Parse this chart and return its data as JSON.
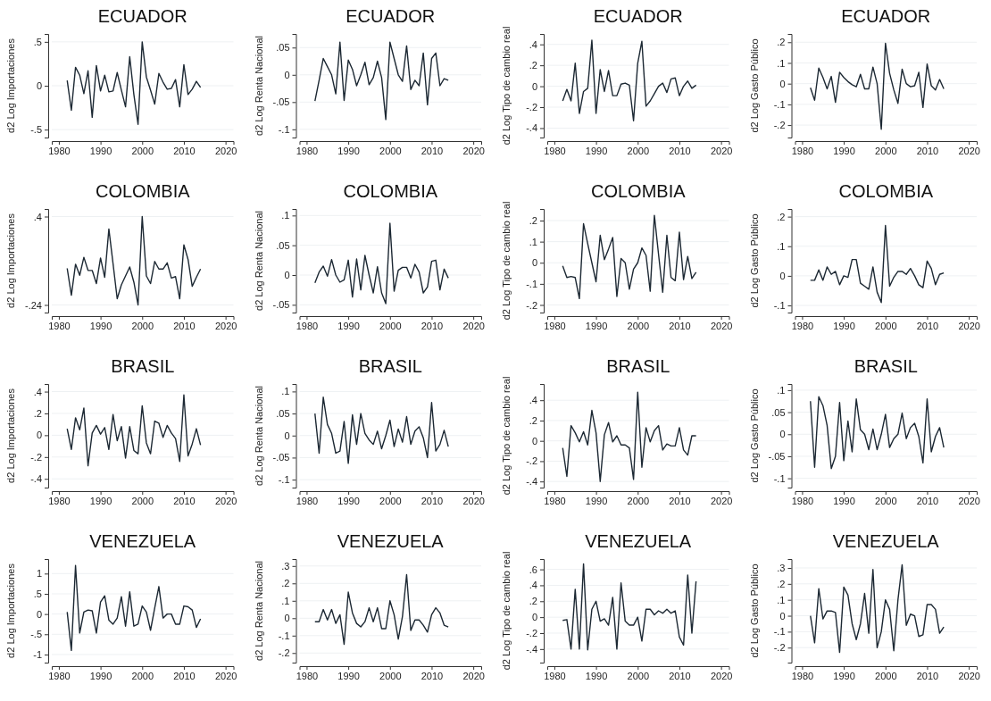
{
  "chart_data": [
    {
      "type": "line",
      "title": "ECUADOR",
      "ylabel": "d2 Log Importaciones",
      "grid": "y",
      "xlim": [
        1978.3,
        2021.9
      ],
      "xticks": [
        1980,
        1990,
        2000,
        2010,
        2020
      ],
      "ylim": [
        -0.59,
        0.59
      ],
      "yticks": [
        {
          "value": -0.5,
          "label": "-.5"
        },
        0,
        {
          "value": 0.5,
          "label": ".5"
        }
      ],
      "color": "#1c2833",
      "x": [
        1982,
        1983,
        1984,
        1985,
        1986,
        1987,
        1988,
        1989,
        1990,
        1991,
        1992,
        1993,
        1994,
        1995,
        1996,
        1997,
        1998,
        1999,
        2000,
        2001,
        2002,
        2003,
        2004,
        2005,
        2006,
        2007,
        2008,
        2009,
        2010,
        2011,
        2012,
        2013,
        2014
      ],
      "values": [
        0.06,
        -0.28,
        0.21,
        0.12,
        -0.09,
        0.17,
        -0.36,
        0.23,
        -0.06,
        0.12,
        -0.07,
        -0.06,
        0.15,
        -0.05,
        -0.24,
        0.33,
        -0.1,
        -0.44,
        0.5,
        0.1,
        -0.05,
        -0.21,
        0.14,
        0.04,
        -0.04,
        -0.03,
        0.07,
        -0.24,
        0.24,
        -0.1,
        -0.04,
        0.05,
        -0.02
      ]
    },
    {
      "type": "line",
      "title": "ECUADOR",
      "ylabel": "d2 Log Renta Nacional",
      "grid": "y",
      "xlim": [
        1978.3,
        2021.9
      ],
      "xticks": [
        1980,
        1990,
        2000,
        2010,
        2020
      ],
      "ylim": [
        -0.115,
        0.075
      ],
      "yticks": [
        {
          "value": -0.1,
          "label": "-.1"
        },
        {
          "value": -0.05,
          "label": "-.05"
        },
        0,
        {
          "value": 0.05,
          "label": ".05"
        }
      ],
      "color": "#1c2833",
      "x": [
        1982,
        1983,
        1984,
        1985,
        1986,
        1987,
        1988,
        1989,
        1990,
        1991,
        1992,
        1993,
        1994,
        1995,
        1996,
        1997,
        1998,
        1999,
        2000,
        2001,
        2002,
        2003,
        2004,
        2005,
        2006,
        2007,
        2008,
        2009,
        2010,
        2011,
        2012,
        2013,
        2014
      ],
      "values": [
        -0.048,
        -0.01,
        0.03,
        0.015,
        0,
        -0.035,
        0.06,
        -0.047,
        0.027,
        0.01,
        -0.02,
        0,
        0.023,
        -0.018,
        -0.005,
        0.025,
        -0.005,
        -0.082,
        0.06,
        0.03,
        0,
        -0.012,
        0.053,
        -0.027,
        -0.01,
        -0.02,
        0.04,
        -0.055,
        0.03,
        0.04,
        -0.02,
        -0.007,
        -0.01
      ]
    },
    {
      "type": "line",
      "title": "ECUADOR",
      "ylabel": "d2 Log Tipo de cambio real",
      "grid": "y",
      "xlim": [
        1978.3,
        2021.9
      ],
      "xticks": [
        1980,
        1990,
        2000,
        2010,
        2020
      ],
      "ylim": [
        -0.49,
        0.5
      ],
      "yticks": [
        {
          "value": -0.4,
          "label": "-.4"
        },
        {
          "value": -0.2,
          "label": "-.2"
        },
        0,
        {
          "value": 0.2,
          "label": ".2"
        },
        {
          "value": 0.4,
          "label": ".4"
        }
      ],
      "color": "#1c2833",
      "x": [
        1982,
        1983,
        1984,
        1985,
        1986,
        1987,
        1988,
        1989,
        1990,
        1991,
        1992,
        1993,
        1994,
        1995,
        1996,
        1997,
        1998,
        1999,
        2000,
        2001,
        2002,
        2003,
        2004,
        2005,
        2006,
        2007,
        2008,
        2009,
        2010,
        2011,
        2012,
        2013,
        2014
      ],
      "values": [
        -0.14,
        -0.03,
        -0.14,
        0.22,
        -0.26,
        -0.05,
        -0.02,
        0.44,
        -0.26,
        0.16,
        -0.05,
        0.15,
        -0.09,
        -0.09,
        0.02,
        0.03,
        0.01,
        -0.33,
        0.22,
        0.43,
        -0.19,
        -0.14,
        -0.07,
        0,
        0.03,
        -0.06,
        0.07,
        0.08,
        -0.09,
        0,
        0.05,
        -0.02,
        0.01
      ]
    },
    {
      "type": "line",
      "title": "ECUADOR",
      "ylabel": "d2 Log Gasto Público",
      "grid": "y",
      "xlim": [
        1978.3,
        2021.9
      ],
      "xticks": [
        1980,
        1990,
        2000,
        2010,
        2020
      ],
      "ylim": [
        -0.26,
        0.24
      ],
      "yticks": [
        {
          "value": -0.2,
          "label": "-.2"
        },
        {
          "value": -0.1,
          "label": "-.1"
        },
        0,
        {
          "value": 0.1,
          "label": ".1"
        },
        {
          "value": 0.2,
          "label": ".2"
        }
      ],
      "color": "#1c2833",
      "x": [
        1982,
        1983,
        1984,
        1985,
        1986,
        1987,
        1988,
        1989,
        1990,
        1991,
        1992,
        1993,
        1994,
        1995,
        1996,
        1997,
        1998,
        1999,
        2000,
        2001,
        2002,
        2003,
        2004,
        2005,
        2006,
        2007,
        2008,
        2009,
        2010,
        2011,
        2012,
        2013,
        2014
      ],
      "values": [
        -0.02,
        -0.08,
        0.075,
        0.03,
        -0.025,
        0.035,
        -0.09,
        0.055,
        0.03,
        0.01,
        -0.005,
        -0.015,
        0.045,
        -0.025,
        -0.025,
        0.08,
        0,
        -0.22,
        0.195,
        0.05,
        -0.03,
        -0.095,
        0.07,
        0,
        -0.015,
        -0.01,
        0.055,
        -0.115,
        0.095,
        -0.01,
        -0.03,
        0.02,
        -0.025
      ]
    },
    {
      "type": "line",
      "title": "COLOMBIA",
      "ylabel": "d2 Log Importaciones",
      "grid": "y",
      "xlim": [
        1978.3,
        2021.9
      ],
      "xticks": [
        1980,
        1990,
        2000,
        2010,
        2020
      ],
      "ylim": [
        -0.295,
        0.455
      ],
      "yticks": [
        {
          "value": -0.24,
          "label": "-.24"
        },
        {
          "value": 0.4,
          "label": ".4"
        }
      ],
      "color": "#1c2833",
      "x": [
        1982,
        1983,
        1984,
        1985,
        1986,
        1987,
        1988,
        1989,
        1990,
        1991,
        1992,
        1993,
        1994,
        1995,
        1996,
        1997,
        1998,
        1999,
        2000,
        2001,
        2002,
        2003,
        2004,
        2005,
        2006,
        2007,
        2008,
        2009,
        2010,
        2011,
        2012,
        2013,
        2014
      ],
      "values": [
        0.025,
        -0.17,
        0.055,
        -0.025,
        0.105,
        0.01,
        0.01,
        -0.085,
        0.1,
        -0.04,
        0.31,
        0.06,
        -0.195,
        -0.095,
        -0.03,
        0.035,
        -0.075,
        -0.24,
        0.4,
        -0.03,
        -0.085,
        0.075,
        0.02,
        0.02,
        0.065,
        -0.045,
        -0.035,
        -0.195,
        0.195,
        0.09,
        -0.105,
        -0.04,
        0.02
      ]
    },
    {
      "type": "line",
      "title": "COLOMBIA",
      "ylabel": "d2 Log Renta Nacional",
      "grid": "y",
      "xlim": [
        1978.3,
        2021.9
      ],
      "xticks": [
        1980,
        1990,
        2000,
        2010,
        2020
      ],
      "ylim": [
        -0.063,
        0.111
      ],
      "yticks": [
        {
          "value": -0.05,
          "label": "-.05"
        },
        0,
        {
          "value": 0.05,
          "label": ".05"
        },
        {
          "value": 0.1,
          "label": ".1"
        }
      ],
      "color": "#1c2833",
      "x": [
        1982,
        1983,
        1984,
        1985,
        1986,
        1987,
        1988,
        1989,
        1990,
        1991,
        1992,
        1993,
        1994,
        1995,
        1996,
        1997,
        1998,
        1999,
        2000,
        2001,
        2002,
        2003,
        2004,
        2005,
        2006,
        2007,
        2008,
        2009,
        2010,
        2011,
        2012,
        2013,
        2014
      ],
      "values": [
        -0.013,
        0.005,
        0.015,
        -0.002,
        0.026,
        0,
        -0.012,
        -0.008,
        0.025,
        -0.037,
        0.027,
        -0.025,
        0.033,
        0,
        -0.03,
        0.014,
        -0.03,
        -0.048,
        0.087,
        -0.027,
        0.008,
        0.013,
        0.013,
        -0.005,
        0.018,
        0.005,
        -0.03,
        -0.02,
        0.023,
        0.025,
        -0.025,
        0.01,
        -0.005
      ]
    },
    {
      "type": "line",
      "title": "COLOMBIA",
      "ylabel": "d2 Log Tipo de cambio real",
      "grid": "y",
      "xlim": [
        1978.3,
        2021.9
      ],
      "xticks": [
        1980,
        1990,
        2000,
        2010,
        2020
      ],
      "ylim": [
        -0.236,
        0.255
      ],
      "yticks": [
        {
          "value": -0.2,
          "label": "-.2"
        },
        {
          "value": -0.1,
          "label": "-.1"
        },
        0,
        {
          "value": 0.1,
          "label": ".1"
        },
        {
          "value": 0.2,
          "label": ".2"
        }
      ],
      "color": "#1c2833",
      "x": [
        1982,
        1983,
        1984,
        1985,
        1986,
        1987,
        1988,
        1989,
        1990,
        1991,
        1992,
        1993,
        1994,
        1995,
        1996,
        1997,
        1998,
        1999,
        2000,
        2001,
        2002,
        2003,
        2004,
        2005,
        2006,
        2007,
        2008,
        2009,
        2010,
        2011,
        2012,
        2013,
        2014
      ],
      "values": [
        -0.015,
        -0.07,
        -0.065,
        -0.07,
        -0.17,
        0.185,
        0.09,
        0,
        -0.09,
        0.13,
        0.015,
        0.065,
        0.12,
        -0.16,
        0.02,
        0,
        -0.125,
        -0.03,
        0,
        0.07,
        0.035,
        -0.135,
        0.225,
        0.04,
        -0.14,
        0.13,
        -0.07,
        -0.085,
        0.145,
        -0.08,
        0.03,
        -0.075,
        -0.045
      ]
    },
    {
      "type": "line",
      "title": "COLOMBIA",
      "ylabel": "d2 Log Gasto Público",
      "grid": "y",
      "xlim": [
        1978.3,
        2021.9
      ],
      "xticks": [
        1980,
        1990,
        2000,
        2010,
        2020
      ],
      "ylim": [
        -0.124,
        0.226
      ],
      "yticks": [
        {
          "value": -0.1,
          "label": "-.1"
        },
        0,
        {
          "value": 0.1,
          "label": ".1"
        },
        {
          "value": 0.2,
          "label": ".2"
        }
      ],
      "color": "#1c2833",
      "x": [
        1982,
        1983,
        1984,
        1985,
        1986,
        1987,
        1988,
        1989,
        1990,
        1991,
        1992,
        1993,
        1994,
        1995,
        1996,
        1997,
        1998,
        1999,
        2000,
        2001,
        2002,
        2003,
        2004,
        2005,
        2006,
        2007,
        2008,
        2009,
        2010,
        2011,
        2012,
        2013,
        2014
      ],
      "values": [
        -0.015,
        -0.015,
        0.02,
        -0.015,
        0.03,
        0.005,
        0.015,
        -0.03,
        0,
        -0.005,
        0.055,
        0.055,
        -0.025,
        -0.035,
        -0.045,
        0.03,
        -0.055,
        -0.09,
        0.17,
        -0.035,
        -0.005,
        0.015,
        0.015,
        0.005,
        0.025,
        0,
        -0.03,
        -0.04,
        0.05,
        0.025,
        -0.03,
        0.005,
        0.01
      ]
    },
    {
      "type": "line",
      "title": "BRASIL",
      "ylabel": "d2 Log Importaciones",
      "grid": "y",
      "xlim": [
        1978.3,
        2021.9
      ],
      "xticks": [
        1980,
        1990,
        2000,
        2010,
        2020
      ],
      "ylim": [
        -0.48,
        0.47
      ],
      "yticks": [
        {
          "value": -0.4,
          "label": "-.4"
        },
        {
          "value": -0.2,
          "label": "-.2"
        },
        0,
        {
          "value": 0.2,
          "label": ".2"
        },
        {
          "value": 0.4,
          "label": ".4"
        }
      ],
      "color": "#1c2833",
      "x": [
        1982,
        1983,
        1984,
        1985,
        1986,
        1987,
        1988,
        1989,
        1990,
        1991,
        1992,
        1993,
        1994,
        1995,
        1996,
        1997,
        1998,
        1999,
        2000,
        2001,
        2002,
        2003,
        2004,
        2005,
        2006,
        2007,
        2008,
        2009,
        2010,
        2011,
        2012,
        2013,
        2014
      ],
      "values": [
        0.06,
        -0.13,
        0.16,
        0.05,
        0.25,
        -0.28,
        0.02,
        0.09,
        0.01,
        0.07,
        -0.13,
        0.19,
        -0.05,
        0.08,
        -0.21,
        0.08,
        -0.14,
        -0.17,
        0.27,
        -0.07,
        -0.17,
        0.13,
        0.11,
        -0.02,
        0.09,
        0.02,
        -0.03,
        -0.24,
        0.37,
        -0.19,
        -0.08,
        0.06,
        -0.09
      ]
    },
    {
      "type": "line",
      "title": "BRASIL",
      "ylabel": "d2 Log Renta Nacional",
      "grid": "y",
      "xlim": [
        1978.3,
        2021.9
      ],
      "xticks": [
        1980,
        1990,
        2000,
        2010,
        2020
      ],
      "ylim": [
        -0.118,
        0.117
      ],
      "yticks": [
        {
          "value": -0.1,
          "label": "-.1"
        },
        {
          "value": -0.05,
          "label": "-.05"
        },
        0,
        {
          "value": 0.05,
          "label": ".05"
        },
        {
          "value": 0.1,
          "label": ".1"
        }
      ],
      "color": "#1c2833",
      "x": [
        1982,
        1983,
        1984,
        1985,
        1986,
        1987,
        1988,
        1989,
        1990,
        1991,
        1992,
        1993,
        1994,
        1995,
        1996,
        1997,
        1998,
        1999,
        2000,
        2001,
        2002,
        2003,
        2004,
        2005,
        2006,
        2007,
        2008,
        2009,
        2010,
        2011,
        2012,
        2013,
        2014
      ],
      "values": [
        0.05,
        -0.04,
        0.087,
        0.025,
        0.005,
        -0.04,
        -0.035,
        0.032,
        -0.063,
        0.047,
        -0.02,
        0.05,
        0.005,
        -0.01,
        -0.02,
        0.01,
        -0.03,
        0,
        0.035,
        -0.025,
        0.015,
        -0.015,
        0.043,
        -0.02,
        0.01,
        0.02,
        -0.005,
        -0.05,
        0.075,
        -0.035,
        -0.02,
        0.012,
        -0.025
      ]
    },
    {
      "type": "line",
      "title": "BRASIL",
      "ylabel": "d2 Log Tipo de cambio real",
      "grid": "y",
      "xlim": [
        1978.3,
        2021.9
      ],
      "xticks": [
        1980,
        1990,
        2000,
        2010,
        2020
      ],
      "ylim": [
        -0.46,
        0.56
      ],
      "yticks": [
        {
          "value": -0.4,
          "label": "-.4"
        },
        {
          "value": -0.2,
          "label": "-.2"
        },
        0,
        {
          "value": 0.2,
          "label": ".2"
        },
        {
          "value": 0.4,
          "label": ".4"
        }
      ],
      "color": "#1c2833",
      "x": [
        1982,
        1983,
        1984,
        1985,
        1986,
        1987,
        1988,
        1989,
        1990,
        1991,
        1992,
        1993,
        1994,
        1995,
        1996,
        1997,
        1998,
        1999,
        2000,
        2001,
        2002,
        2003,
        2004,
        2005,
        2006,
        2007,
        2008,
        2009,
        2010,
        2011,
        2012,
        2013,
        2014
      ],
      "values": [
        -0.07,
        -0.35,
        0.15,
        0.08,
        -0.01,
        0.09,
        -0.04,
        0.3,
        0.08,
        -0.4,
        0.06,
        0.18,
        -0.01,
        0.05,
        -0.04,
        -0.04,
        -0.07,
        -0.38,
        0.48,
        -0.26,
        0.13,
        -0.01,
        0.1,
        0.15,
        -0.09,
        -0.03,
        -0.05,
        -0.05,
        0.13,
        -0.09,
        -0.14,
        0.05,
        0.05
      ]
    },
    {
      "type": "line",
      "title": "BRASIL",
      "ylabel": "d2 Log Gasto Público",
      "grid": "y",
      "xlim": [
        1978.3,
        2021.9
      ],
      "xticks": [
        1980,
        1990,
        2000,
        2010,
        2020
      ],
      "ylim": [
        -0.121,
        0.114
      ],
      "yticks": [
        {
          "value": -0.1,
          "label": "-.1"
        },
        {
          "value": -0.05,
          "label": "-.05"
        },
        0,
        {
          "value": 0.05,
          "label": ".05"
        },
        {
          "value": 0.1,
          "label": ".1"
        }
      ],
      "color": "#1c2833",
      "x": [
        1982,
        1983,
        1984,
        1985,
        1986,
        1987,
        1988,
        1989,
        1990,
        1991,
        1992,
        1993,
        1994,
        1995,
        1996,
        1997,
        1998,
        1999,
        2000,
        2001,
        2002,
        2003,
        2004,
        2005,
        2006,
        2007,
        2008,
        2009,
        2010,
        2011,
        2012,
        2013,
        2014
      ],
      "values": [
        0.075,
        -0.075,
        0.085,
        0.065,
        0.02,
        -0.078,
        -0.05,
        0.072,
        -0.06,
        0.03,
        -0.04,
        0.08,
        0.01,
        0,
        -0.035,
        0.012,
        -0.035,
        0,
        0.045,
        -0.03,
        -0.01,
        0,
        0.048,
        -0.01,
        0.015,
        0.025,
        -0.005,
        -0.065,
        0.08,
        -0.04,
        -0.005,
        0.015,
        -0.03
      ]
    },
    {
      "type": "line",
      "title": "VENEZUELA",
      "ylabel": "d2 Log Importaciones",
      "grid": "y",
      "xlim": [
        1978.3,
        2021.9
      ],
      "xticks": [
        1980,
        1990,
        2000,
        2010,
        2020
      ],
      "ylim": [
        -1.2,
        1.36
      ],
      "yticks": [
        -1,
        {
          "value": -0.5,
          "label": "-.5"
        },
        0,
        {
          "value": 0.5,
          "label": ".5"
        },
        1
      ],
      "color": "#1c2833",
      "x": [
        1982,
        1983,
        1984,
        1985,
        1986,
        1987,
        1988,
        1989,
        1990,
        1991,
        1992,
        1993,
        1994,
        1995,
        1996,
        1997,
        1998,
        1999,
        2000,
        2001,
        2002,
        2003,
        2004,
        2005,
        2006,
        2007,
        2008,
        2009,
        2010,
        2011,
        2012,
        2013,
        2014
      ],
      "values": [
        0.05,
        -0.9,
        1.2,
        -0.47,
        0.05,
        0.1,
        0.08,
        -0.47,
        0.3,
        0.45,
        -0.15,
        -0.25,
        -0.1,
        0.43,
        -0.3,
        0.55,
        -0.3,
        -0.25,
        0.2,
        0.05,
        -0.4,
        0.15,
        0.68,
        -0.1,
        0,
        0,
        -0.25,
        -0.25,
        0.2,
        0.18,
        0.1,
        -0.33,
        -0.12
      ]
    },
    {
      "type": "line",
      "title": "VENEZUELA",
      "ylabel": "d2 Log Renta Nacional",
      "grid": "y",
      "xlim": [
        1978.3,
        2021.9
      ],
      "xticks": [
        1980,
        1990,
        2000,
        2010,
        2020
      ],
      "ylim": [
        -0.255,
        0.34
      ],
      "yticks": [
        {
          "value": -0.2,
          "label": "-.2"
        },
        {
          "value": -0.1,
          "label": "-.1"
        },
        0,
        {
          "value": 0.1,
          "label": ".1"
        },
        {
          "value": 0.2,
          "label": ".2"
        },
        {
          "value": 0.3,
          "label": ".3"
        }
      ],
      "color": "#1c2833",
      "x": [
        1982,
        1983,
        1984,
        1985,
        1986,
        1987,
        1988,
        1989,
        1990,
        1991,
        1992,
        1993,
        1994,
        1995,
        1996,
        1997,
        1998,
        1999,
        2000,
        2001,
        2002,
        2003,
        2004,
        2005,
        2006,
        2007,
        2008,
        2009,
        2010,
        2011,
        2012,
        2013,
        2014
      ],
      "values": [
        -0.02,
        -0.02,
        0.05,
        -0.01,
        0.05,
        -0.03,
        0.02,
        -0.15,
        0.15,
        0.03,
        -0.03,
        -0.05,
        -0.02,
        0.06,
        -0.02,
        0.06,
        -0.06,
        -0.06,
        0.1,
        0.02,
        -0.12,
        0.01,
        0.25,
        -0.07,
        -0.01,
        -0.01,
        -0.04,
        -0.08,
        0.02,
        0.06,
        0.03,
        -0.04,
        -0.05
      ]
    },
    {
      "type": "line",
      "title": "VENEZUELA",
      "ylabel": "d2 Log Tipo de cambio real",
      "grid": "y",
      "xlim": [
        1978.3,
        2021.9
      ],
      "xticks": [
        1980,
        1990,
        2000,
        2010,
        2020
      ],
      "ylim": [
        -0.57,
        0.73
      ],
      "yticks": [
        {
          "value": -0.4,
          "label": "-.4"
        },
        {
          "value": -0.2,
          "label": "-.2"
        },
        0,
        {
          "value": 0.2,
          "label": ".2"
        },
        {
          "value": 0.4,
          "label": ".4"
        },
        {
          "value": 0.6,
          "label": ".6"
        }
      ],
      "color": "#1c2833",
      "x": [
        1982,
        1983,
        1984,
        1985,
        1986,
        1987,
        1988,
        1989,
        1990,
        1991,
        1992,
        1993,
        1994,
        1995,
        1996,
        1997,
        1998,
        1999,
        2000,
        2001,
        2002,
        2003,
        2004,
        2005,
        2006,
        2007,
        2008,
        2009,
        2010,
        2011,
        2012,
        2013,
        2014
      ],
      "values": [
        -0.04,
        -0.03,
        -0.4,
        0.35,
        -0.4,
        0.67,
        -0.41,
        0.1,
        0.2,
        -0.05,
        -0.02,
        -0.1,
        0.25,
        -0.4,
        0.43,
        -0.05,
        -0.1,
        -0.1,
        0,
        -0.3,
        0.1,
        0.1,
        0.03,
        0.08,
        0.05,
        0.1,
        0.05,
        0.08,
        -0.25,
        -0.35,
        0.53,
        -0.2,
        0.45
      ]
    },
    {
      "type": "line",
      "title": "VENEZUELA",
      "ylabel": "d2 Log Gasto Público",
      "grid": "y",
      "xlim": [
        1978.3,
        2021.9
      ],
      "xticks": [
        1980,
        1990,
        2000,
        2010,
        2020
      ],
      "ylim": [
        -0.294,
        0.356
      ],
      "yticks": [
        {
          "value": -0.2,
          "label": "-.2"
        },
        {
          "value": -0.1,
          "label": "-.1"
        },
        0,
        {
          "value": 0.1,
          "label": ".1"
        },
        {
          "value": 0.2,
          "label": ".2"
        },
        {
          "value": 0.3,
          "label": ".3"
        }
      ],
      "color": "#1c2833",
      "x": [
        1982,
        1983,
        1984,
        1985,
        1986,
        1987,
        1988,
        1989,
        1990,
        1991,
        1992,
        1993,
        1994,
        1995,
        1996,
        1997,
        1998,
        1999,
        2000,
        2001,
        2002,
        2003,
        2004,
        2005,
        2006,
        2007,
        2008,
        2009,
        2010,
        2011,
        2012,
        2013,
        2014
      ],
      "values": [
        0,
        -0.17,
        0.17,
        -0.02,
        0.03,
        0.03,
        0.02,
        -0.23,
        0.18,
        0.13,
        -0.05,
        -0.15,
        -0.05,
        0.14,
        -0.11,
        0.29,
        -0.2,
        -0.1,
        0.1,
        0.04,
        -0.22,
        0.1,
        0.32,
        -0.06,
        0.01,
        0,
        -0.13,
        -0.12,
        0.07,
        0.07,
        0.04,
        -0.11,
        -0.07
      ]
    }
  ]
}
